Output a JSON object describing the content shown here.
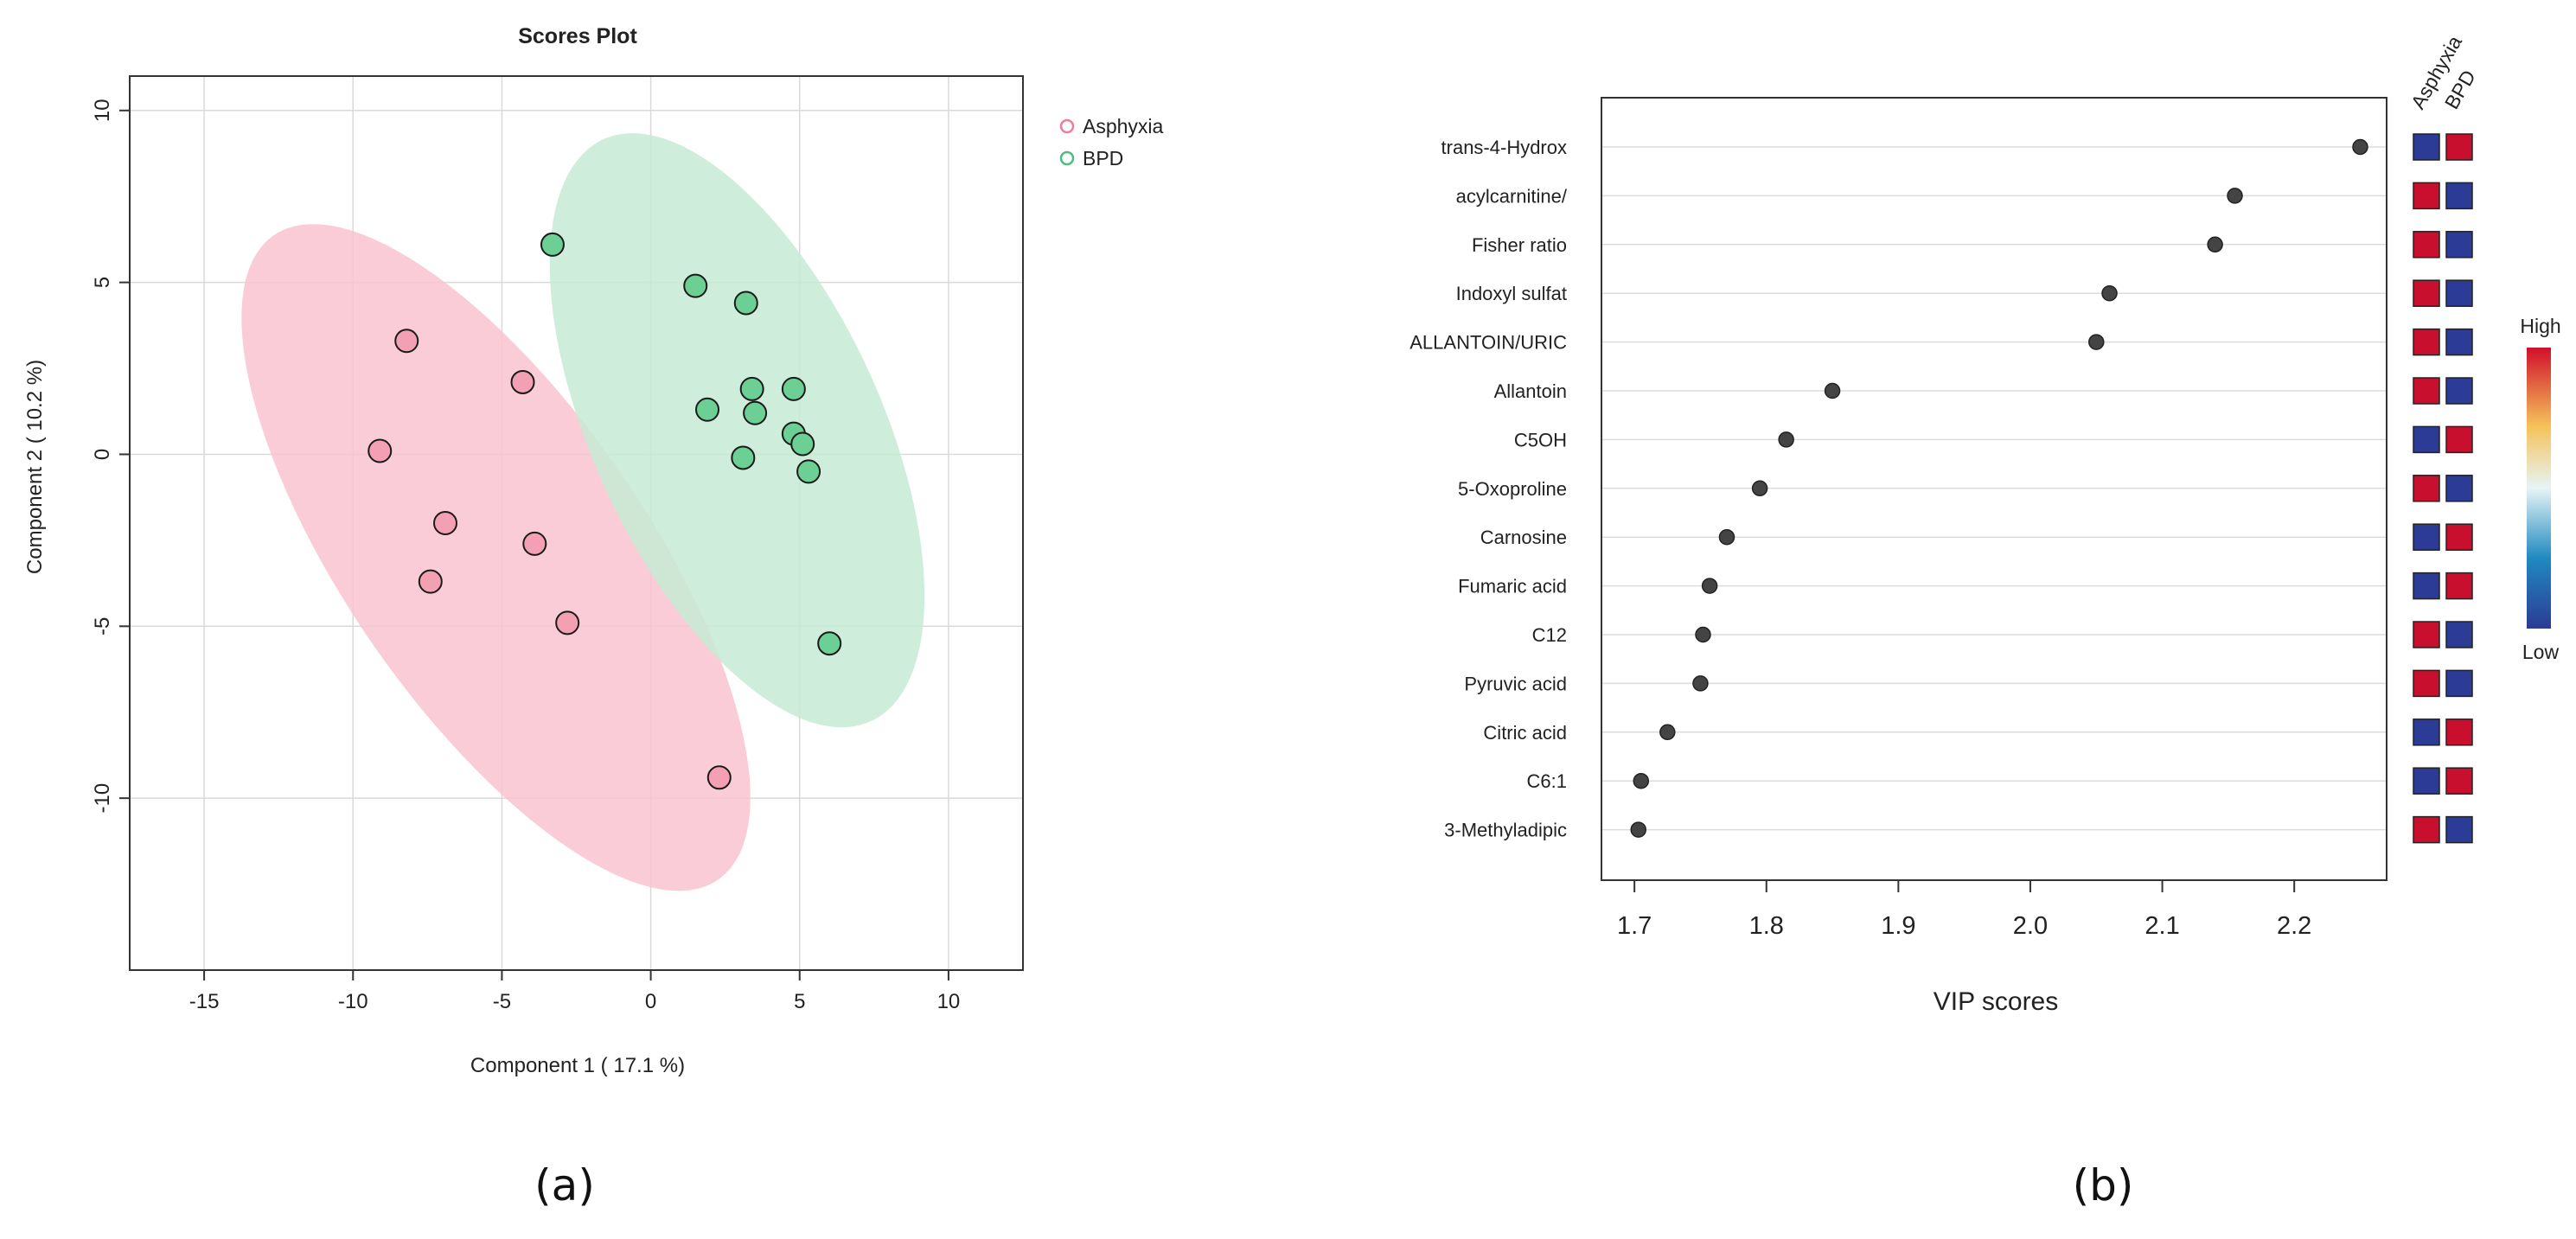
{
  "panels": {
    "a_label": "(a)",
    "b_label": "(b)"
  },
  "chart_data": [
    {
      "type": "scatter",
      "title": "Scores Plot",
      "xlabel": "Component 1 ( 17.1 %)",
      "ylabel": "Component 2 ( 10.2 %)",
      "xlim": [
        -17.5,
        12.5
      ],
      "ylim": [
        -15,
        11
      ],
      "xticks": [
        -15,
        -10,
        -5,
        0,
        5,
        10
      ],
      "yticks": [
        10,
        5,
        0,
        -5,
        -10
      ],
      "grid": true,
      "legend_position": "top-right",
      "series": [
        {
          "name": "Asphyxia",
          "color": "#f07b9b",
          "fill": "#f4a0b4",
          "ellipse_color": "#f9c3d0",
          "points": [
            [
              -8.2,
              3.3
            ],
            [
              -4.3,
              2.1
            ],
            [
              -9.1,
              0.1
            ],
            [
              -6.9,
              -2.0
            ],
            [
              -3.9,
              -2.6
            ],
            [
              -7.4,
              -3.7
            ],
            [
              -2.8,
              -4.9
            ],
            [
              2.3,
              -9.4
            ]
          ],
          "ellipse": {
            "center": [
              -5.2,
              -3.0
            ],
            "semi_major": 12.0,
            "semi_minor": 4.8,
            "angle_deg": 130
          }
        },
        {
          "name": "BPD",
          "color": "#4dbd7e",
          "fill": "#6ccf94",
          "ellipse_color": "#c5ead3",
          "points": [
            [
              -3.3,
              6.1
            ],
            [
              1.5,
              4.9
            ],
            [
              3.2,
              4.4
            ],
            [
              3.4,
              1.9
            ],
            [
              4.8,
              1.9
            ],
            [
              1.9,
              1.3
            ],
            [
              3.5,
              1.2
            ],
            [
              4.8,
              0.6
            ],
            [
              5.1,
              0.3
            ],
            [
              3.1,
              -0.1
            ],
            [
              5.3,
              -0.5
            ],
            [
              6.0,
              -5.5
            ]
          ],
          "ellipse": {
            "center": [
              2.9,
              0.7
            ],
            "semi_major": 9.6,
            "semi_minor": 4.7,
            "angle_deg": 120
          }
        }
      ]
    },
    {
      "type": "scatter",
      "subtype": "vip_dotplot",
      "xlabel": "VIP scores",
      "xlim": [
        1.675,
        2.27
      ],
      "xticks": [
        "1.7",
        "1.8",
        "1.9",
        "2.0",
        "2.1",
        "2.2"
      ],
      "heatmap_columns": [
        "Asphyxia",
        "BPD"
      ],
      "colorbar": {
        "high_label": "High",
        "low_label": "Low"
      },
      "high_color": "#c8102e",
      "low_color": "#2b3b96",
      "features": [
        {
          "name": "trans-4-Hydrox",
          "vip": 2.25,
          "levels": [
            "low",
            "high"
          ]
        },
        {
          "name": "acylcarnitine/",
          "vip": 2.155,
          "levels": [
            "high",
            "low"
          ]
        },
        {
          "name": "Fisher ratio",
          "vip": 2.14,
          "levels": [
            "high",
            "low"
          ]
        },
        {
          "name": "Indoxyl sulfat",
          "vip": 2.06,
          "levels": [
            "high",
            "low"
          ]
        },
        {
          "name": "ALLANTOIN/URIC",
          "vip": 2.05,
          "levels": [
            "high",
            "low"
          ]
        },
        {
          "name": "Allantoin",
          "vip": 1.85,
          "levels": [
            "high",
            "low"
          ]
        },
        {
          "name": "C5OH",
          "vip": 1.815,
          "levels": [
            "low",
            "high"
          ]
        },
        {
          "name": "5-Oxoproline",
          "vip": 1.795,
          "levels": [
            "high",
            "low"
          ]
        },
        {
          "name": "Carnosine",
          "vip": 1.77,
          "levels": [
            "low",
            "high"
          ]
        },
        {
          "name": "Fumaric acid",
          "vip": 1.757,
          "levels": [
            "low",
            "high"
          ]
        },
        {
          "name": "C12",
          "vip": 1.752,
          "levels": [
            "high",
            "low"
          ]
        },
        {
          "name": "Pyruvic acid",
          "vip": 1.75,
          "levels": [
            "high",
            "low"
          ]
        },
        {
          "name": "Citric acid",
          "vip": 1.725,
          "levels": [
            "low",
            "high"
          ]
        },
        {
          "name": "C6:1",
          "vip": 1.705,
          "levels": [
            "low",
            "high"
          ]
        },
        {
          "name": "3-Methyladipic",
          "vip": 1.703,
          "levels": [
            "high",
            "low"
          ]
        }
      ]
    }
  ]
}
